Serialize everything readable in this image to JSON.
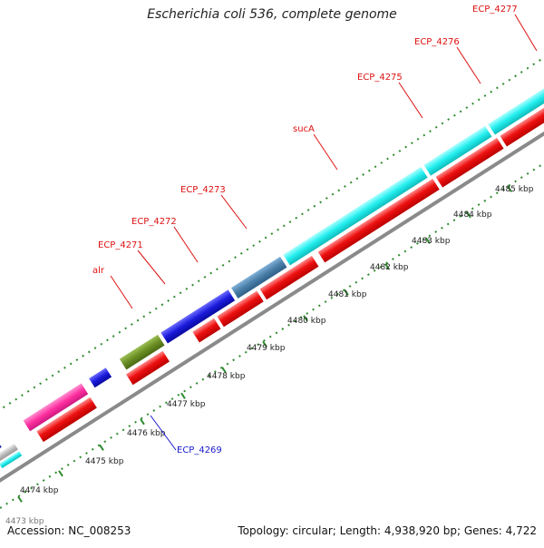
{
  "title": "Escherichia coli 536, complete genome",
  "accession": "Accession: NC_008253",
  "topology": "Topology: circular; Length: 4,938,920 bp; Genes: 4,722",
  "colors": {
    "label_red": "#dd1111",
    "label_blue": "#1a1acc",
    "tick_green": "#2e8b2e",
    "backbone": "#8a8a8a",
    "cyan": "#22eeee",
    "red": "#ee1111",
    "blue": "#1a1adb",
    "olive": "#6b8e23",
    "steelblue": "#4a7fa8",
    "pink": "#ff2fa0",
    "gray": "#bbbbbb"
  },
  "scale_labels": [
    "4474 kbp",
    "4475 kbp",
    "4476 kbp",
    "4477 kbp",
    "4478 kbp",
    "4479 kbp",
    "4480 kbp",
    "4481 kbp",
    "4482 kbp",
    "4483 kbp",
    "4484 kbp",
    "4485 kbp"
  ],
  "gene_labels": [
    "alr",
    "ECP_4271",
    "ECP_4272",
    "ECP_4273",
    "sucA",
    "ECP_4275",
    "ECP_4276",
    "ECP_4277",
    "ECP_4269"
  ],
  "truncated_label": "4473 kbp"
}
